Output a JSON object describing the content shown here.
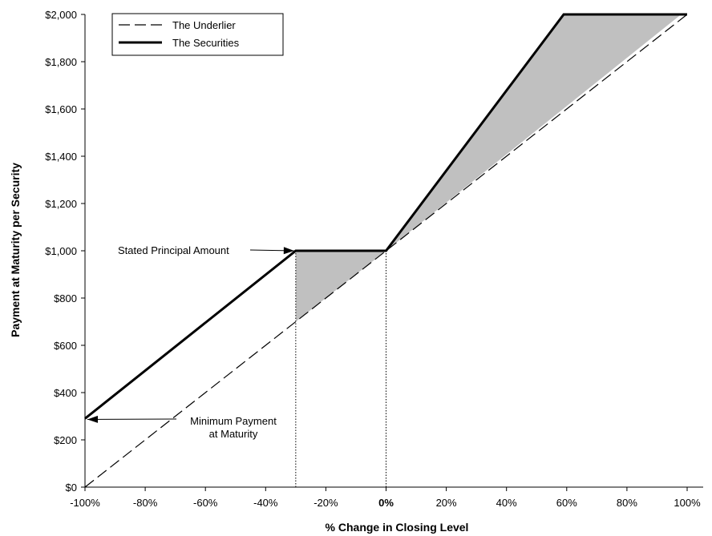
{
  "chart_data": {
    "type": "line",
    "xlabel": "% Change in Closing Level",
    "ylabel": "Payment at Maturity per Security",
    "xlim": [
      -100,
      100
    ],
    "ylim": [
      0,
      2000
    ],
    "x_ticks": [
      -100,
      -80,
      -60,
      -40,
      -20,
      0,
      20,
      40,
      60,
      80,
      100
    ],
    "x_tick_labels": [
      "-100%",
      "-80%",
      "-60%",
      "-40%",
      "-20%",
      "0%",
      "20%",
      "40%",
      "60%",
      "80%",
      "100%"
    ],
    "y_ticks": [
      0,
      200,
      400,
      600,
      800,
      1000,
      1200,
      1400,
      1600,
      1800,
      2000
    ],
    "y_tick_labels": [
      "$0",
      "$200",
      "$400",
      "$600",
      "$800",
      "$1,000",
      "$1,200",
      "$1,400",
      "$1,600",
      "$1,800",
      "$2,000"
    ],
    "grid": false,
    "legend_position": "top-left",
    "series": [
      {
        "name": "The Underlier",
        "style": "dashed",
        "color": "#000000",
        "x": [
          -100,
          100
        ],
        "y": [
          0,
          2000
        ]
      },
      {
        "name": "The Securities",
        "style": "solid",
        "color": "#000000",
        "x": [
          -100,
          -30,
          0,
          59,
          100
        ],
        "y": [
          290,
          1000,
          1000,
          2000,
          2000
        ]
      }
    ],
    "shaded_regions": [
      {
        "color": "#c0c0c0",
        "points": [
          [
            -30,
            700
          ],
          [
            -30,
            1000
          ],
          [
            0,
            1000
          ]
        ]
      },
      {
        "color": "#c0c0c0",
        "points": [
          [
            0,
            1000
          ],
          [
            59,
            2000
          ],
          [
            98,
            2000
          ]
        ]
      }
    ],
    "reference_lines": [
      {
        "x": -30,
        "y_from": 0,
        "y_to": 1000,
        "style": "dotted"
      },
      {
        "x": 0,
        "y_from": 0,
        "y_to": 1000,
        "style": "dotted"
      }
    ],
    "annotations": [
      {
        "text": "Stated Principal Amount",
        "arrow_to": [
          -30,
          1000
        ]
      },
      {
        "text": "Minimum Payment\nat Maturity",
        "arrow_to": [
          -100,
          290
        ]
      }
    ]
  }
}
